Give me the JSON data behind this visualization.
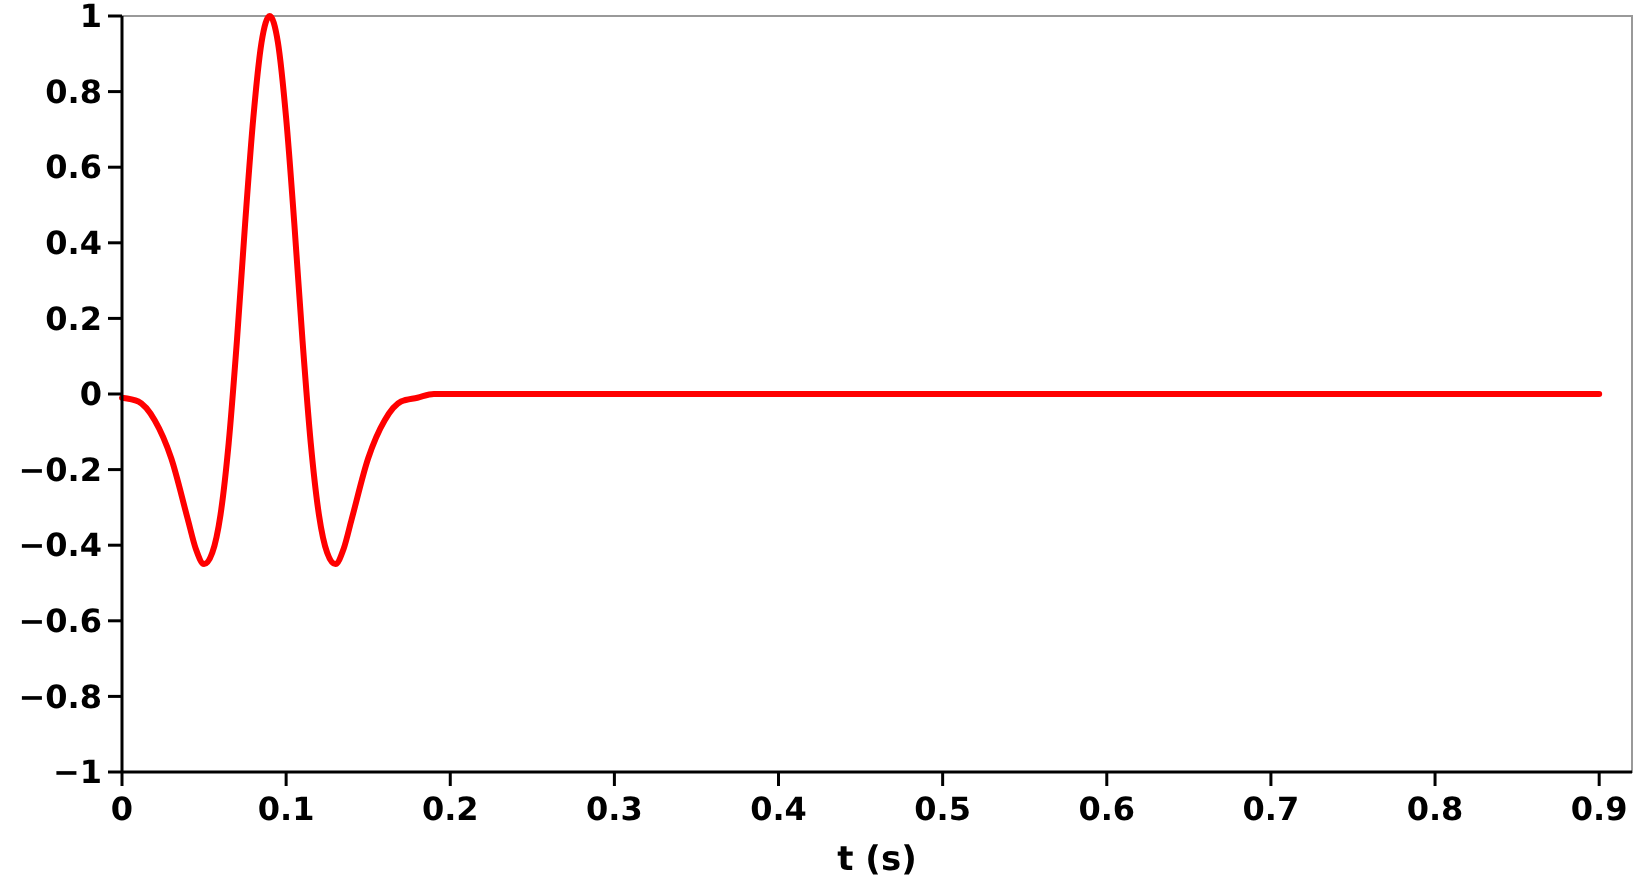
{
  "chart_data": {
    "type": "line",
    "xlabel": "t (s)",
    "x": [
      0,
      0.01,
      0.02,
      0.03,
      0.04,
      0.045,
      0.05,
      0.055,
      0.06,
      0.065,
      0.07,
      0.075,
      0.08,
      0.085,
      0.09,
      0.095,
      0.1,
      0.105,
      0.11,
      0.115,
      0.12,
      0.125,
      0.13,
      0.135,
      0.14,
      0.15,
      0.16,
      0.17,
      0.18,
      0.19,
      0.2,
      0.3,
      0.4,
      0.5,
      0.6,
      0.7,
      0.8,
      0.9
    ],
    "series": [
      {
        "color": "#ff0000",
        "values": [
          -0.01,
          -0.02,
          -0.07,
          -0.17,
          -0.33,
          -0.41,
          -0.45,
          -0.42,
          -0.32,
          -0.13,
          0.14,
          0.45,
          0.73,
          0.93,
          1,
          0.93,
          0.73,
          0.45,
          0.14,
          -0.13,
          -0.32,
          -0.42,
          -0.45,
          -0.41,
          -0.33,
          -0.17,
          -0.07,
          -0.02,
          -0.01,
          0,
          0,
          0,
          0,
          0,
          0,
          0,
          0,
          0
        ]
      }
    ],
    "xlim": [
      0,
      0.92
    ],
    "xticks": [
      0,
      0.1,
      0.2,
      0.3,
      0.4,
      0.5,
      0.6,
      0.7,
      0.8,
      0.9
    ],
    "ylim": [
      -1,
      1
    ],
    "yticks": [
      {
        "value": -1,
        "label": "−1"
      },
      {
        "value": -0.8,
        "label": "−0.8"
      },
      {
        "value": -0.6,
        "label": "−0.6"
      },
      {
        "value": -0.4,
        "label": "−0.4"
      },
      {
        "value": -0.2,
        "label": "−0.2"
      },
      0,
      0.2,
      0.4,
      0.6,
      0.8,
      1
    ],
    "grid": false,
    "marker": "none",
    "line_style": "solid"
  }
}
